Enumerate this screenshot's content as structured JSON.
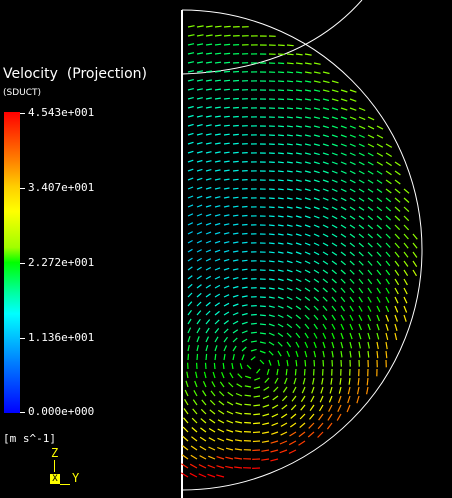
{
  "legend": {
    "title": "Velocity  (Projection)",
    "subtitle": "(SDUCT)",
    "ticks": [
      "4.543e+001",
      "3.407e+001",
      "2.272e+001",
      "1.136e+001",
      "0.000e+000"
    ],
    "units": "[m s^-1]"
  },
  "axes": {
    "z": "Z",
    "y": "Y",
    "x": "X"
  },
  "colors": {
    "background": "#000000",
    "outline": "#ffffff",
    "axis": "#ffff00"
  },
  "vector_field": {
    "min": 0.0,
    "max": 45.43
  }
}
